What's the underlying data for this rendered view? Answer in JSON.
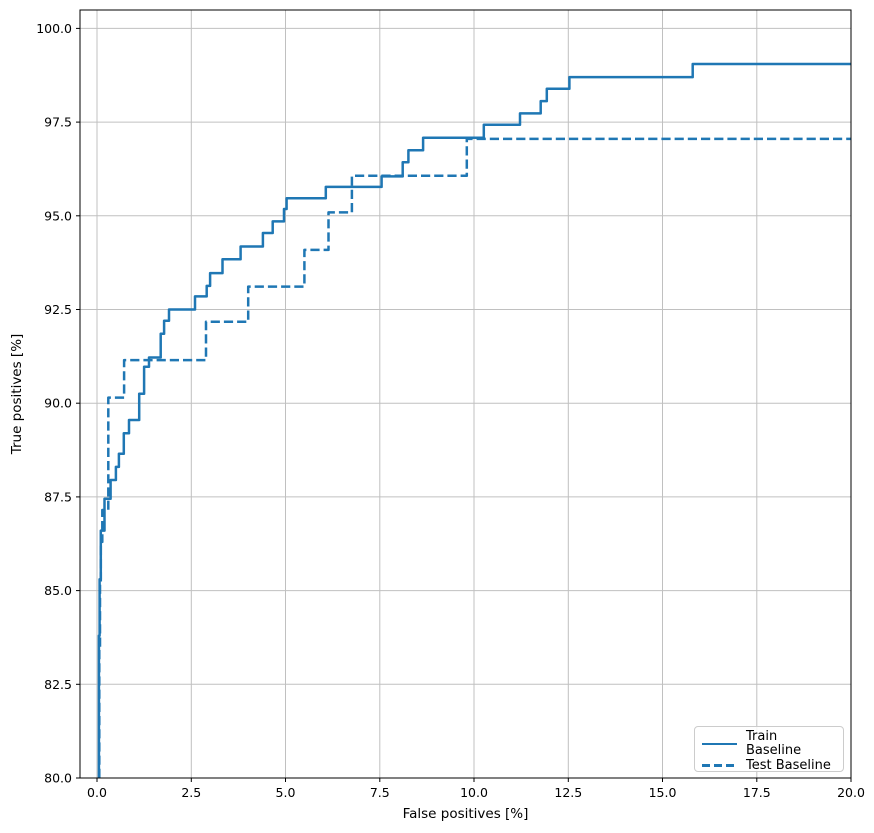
{
  "chart_data": {
    "type": "line",
    "variant": "roc-step-curves",
    "title": "",
    "xlabel": "False positives [%]",
    "ylabel": "True positives [%]",
    "grid": true,
    "legend": {
      "position": "lower right",
      "entries": [
        "Train Baseline",
        "Test Baseline"
      ]
    },
    "colors": {
      "line": "#1f77b4",
      "grid": "#c0c0c0",
      "spine": "#000000",
      "text": "#000000",
      "legend_border": "#cccccc",
      "background": "#ffffff"
    },
    "axes": {
      "xlim": [
        -0.451,
        20
      ],
      "ylim": [
        80,
        100.49
      ],
      "x_tick_values": [
        0,
        2.5,
        5,
        7.5,
        10,
        12.5,
        15,
        17.5,
        20
      ],
      "x_tick_labels": [
        "0.0",
        "2.5",
        "5.0",
        "7.5",
        "10.0",
        "12.5",
        "15.0",
        "17.5",
        "20.0"
      ],
      "y_tick_values": [
        80,
        82.5,
        85,
        87.5,
        90,
        92.5,
        95,
        97.5,
        100
      ],
      "y_tick_labels": [
        "80.0",
        "82.5",
        "85.0",
        "87.5",
        "90.0",
        "92.5",
        "95.0",
        "97.5",
        "100.0"
      ]
    },
    "series": [
      {
        "name": "Train Baseline",
        "style": "solid",
        "line_width": 2.5,
        "start_y": 80,
        "end_x": 20,
        "steps": [
          [
            0.05,
            83.8
          ],
          [
            0.07,
            85.3
          ],
          [
            0.1,
            86.6
          ],
          [
            0.2,
            87.45
          ],
          [
            0.36,
            87.95
          ],
          [
            0.5,
            88.3
          ],
          [
            0.58,
            88.65
          ],
          [
            0.71,
            89.2
          ],
          [
            0.85,
            89.55
          ],
          [
            1.12,
            90.25
          ],
          [
            1.25,
            90.97
          ],
          [
            1.38,
            91.22
          ],
          [
            1.69,
            91.85
          ],
          [
            1.78,
            92.2
          ],
          [
            1.91,
            92.5
          ],
          [
            2.6,
            92.85
          ],
          [
            2.91,
            93.13
          ],
          [
            3.0,
            93.47
          ],
          [
            3.33,
            93.84
          ],
          [
            3.81,
            94.18
          ],
          [
            4.4,
            94.54
          ],
          [
            4.66,
            94.85
          ],
          [
            4.96,
            95.18
          ],
          [
            5.03,
            95.47
          ],
          [
            6.07,
            95.77
          ],
          [
            7.55,
            96.05
          ],
          [
            8.11,
            96.43
          ],
          [
            8.26,
            96.75
          ],
          [
            8.65,
            97.08
          ],
          [
            10.26,
            97.43
          ],
          [
            11.22,
            97.73
          ],
          [
            11.77,
            98.06
          ],
          [
            11.93,
            98.39
          ],
          [
            12.53,
            98.7
          ],
          [
            15.8,
            99.05
          ]
        ]
      },
      {
        "name": "Test Baseline",
        "style": "dashed",
        "line_width": 2.5,
        "dash": [
          9.2,
          4
        ],
        "start_y": 80,
        "end_x": 20,
        "steps": [
          [
            0.06,
            83.5
          ],
          [
            0.08,
            85.2
          ],
          [
            0.1,
            86.3
          ],
          [
            0.14,
            87.15
          ],
          [
            0.3,
            90.15
          ],
          [
            0.72,
            91.15
          ],
          [
            2.89,
            92.17
          ],
          [
            4.01,
            93.11
          ],
          [
            5.5,
            94.09
          ],
          [
            6.14,
            95.09
          ],
          [
            6.76,
            96.07
          ],
          [
            9.81,
            97.05
          ]
        ]
      }
    ]
  }
}
